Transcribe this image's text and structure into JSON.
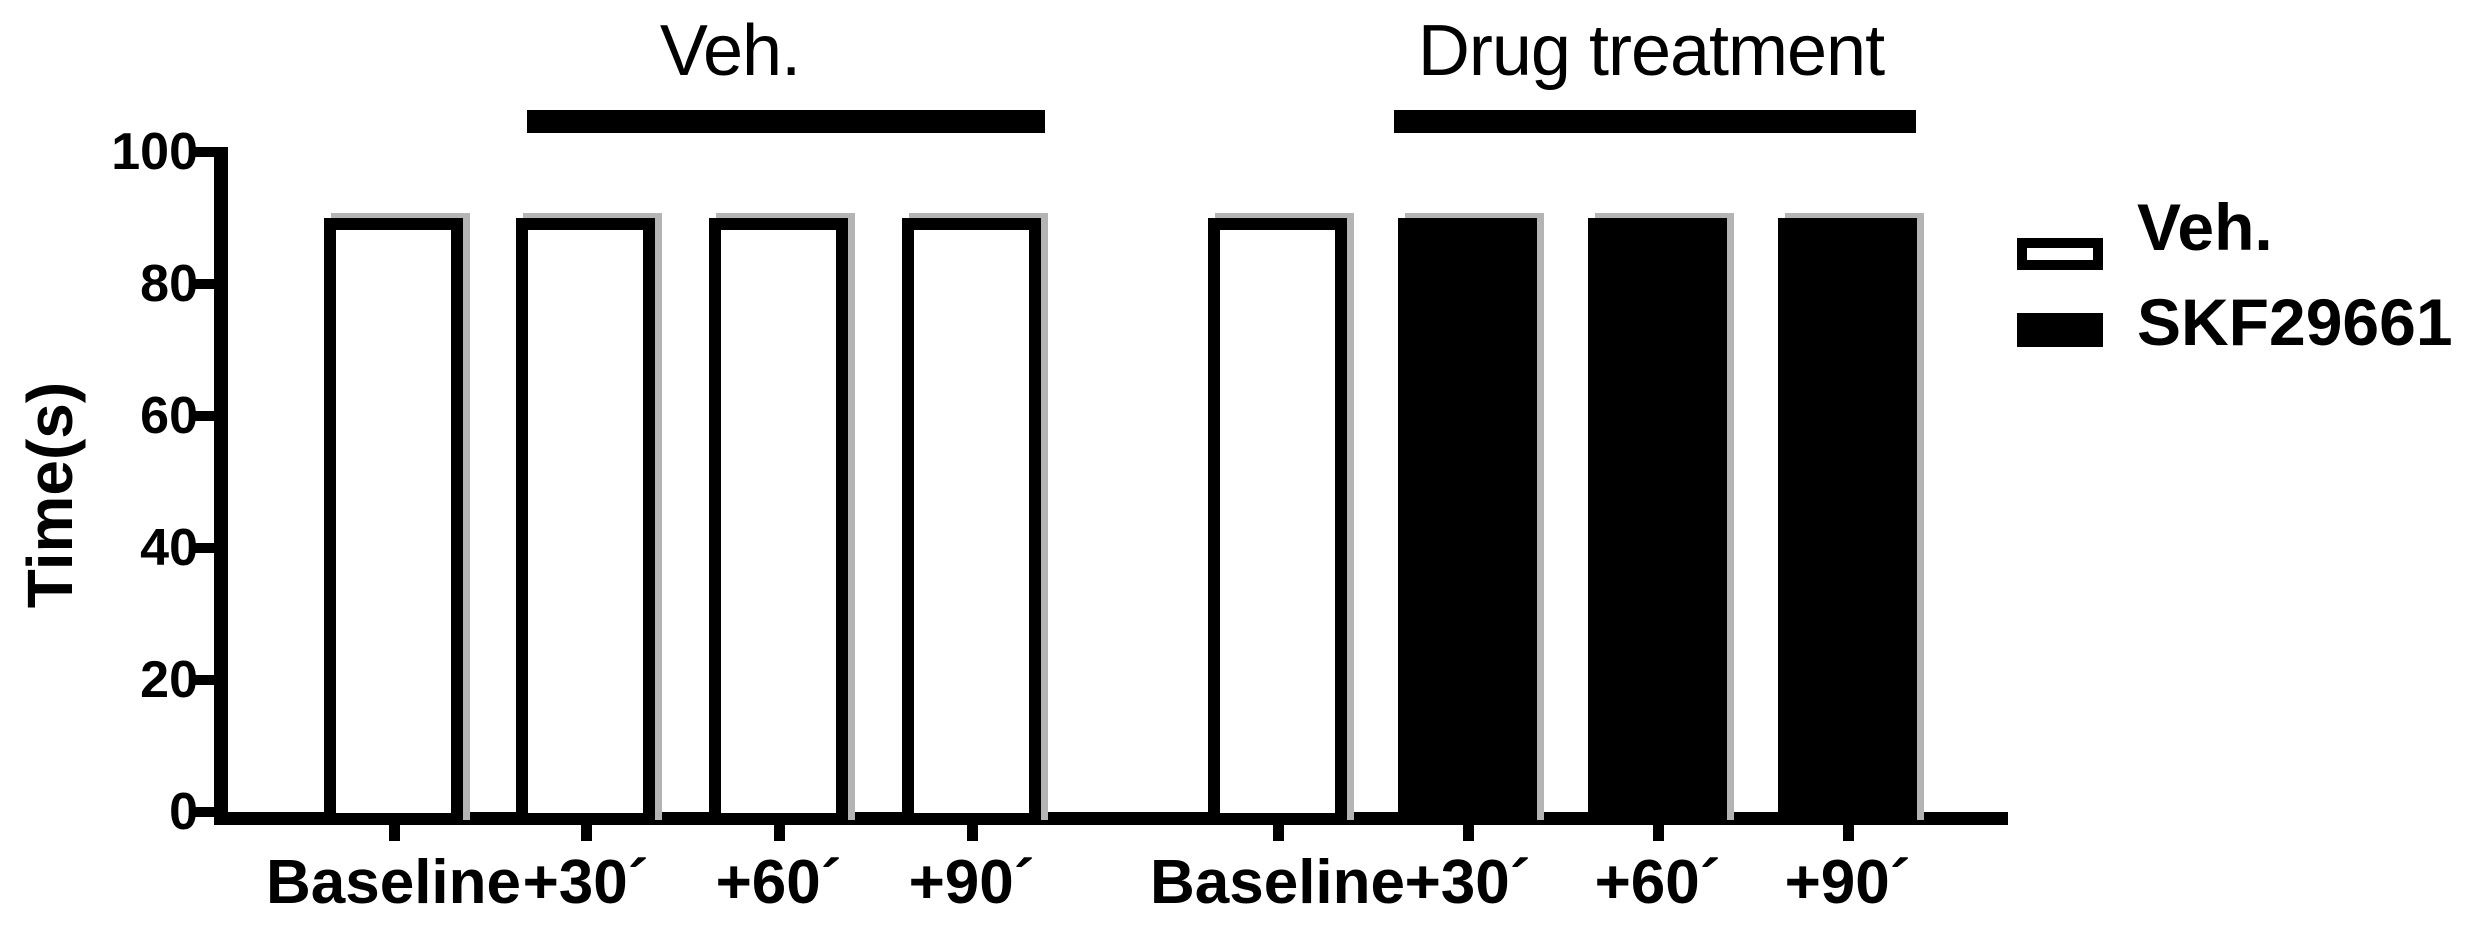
{
  "chart_data": {
    "type": "bar",
    "title": "",
    "xlabel": "",
    "ylabel": "Time(s)",
    "ylim": [
      0,
      100
    ],
    "yticks": [
      100,
      80,
      60,
      40,
      20,
      0
    ],
    "grid": false,
    "legend_position": "right",
    "background_color": "#ffffff",
    "outline_color": "#000000",
    "series_colors": {
      "Veh.": "#ffffff",
      "SKF29661": "#000000"
    },
    "groups": [
      {
        "annotation": "Veh.",
        "bars": [
          {
            "label": "Baseline",
            "series": "Veh.",
            "value": 90
          },
          {
            "label": "+30´",
            "series": "Veh.",
            "value": 90
          },
          {
            "label": "+60´",
            "series": "Veh.",
            "value": 90
          },
          {
            "label": "+90´",
            "series": "Veh.",
            "value": 90
          }
        ]
      },
      {
        "annotation": "Drug treatment",
        "bars": [
          {
            "label": "Baseline",
            "series": "Veh.",
            "value": 90
          },
          {
            "label": "+30´",
            "series": "SKF29661",
            "value": 90
          },
          {
            "label": "+60´",
            "series": "SKF29661",
            "value": 90
          },
          {
            "label": "+90´",
            "series": "SKF29661",
            "value": 90
          }
        ]
      }
    ],
    "legend": [
      {
        "label": "Veh.",
        "swatch": "white"
      },
      {
        "label": "SKF29661",
        "swatch": "black"
      }
    ]
  }
}
